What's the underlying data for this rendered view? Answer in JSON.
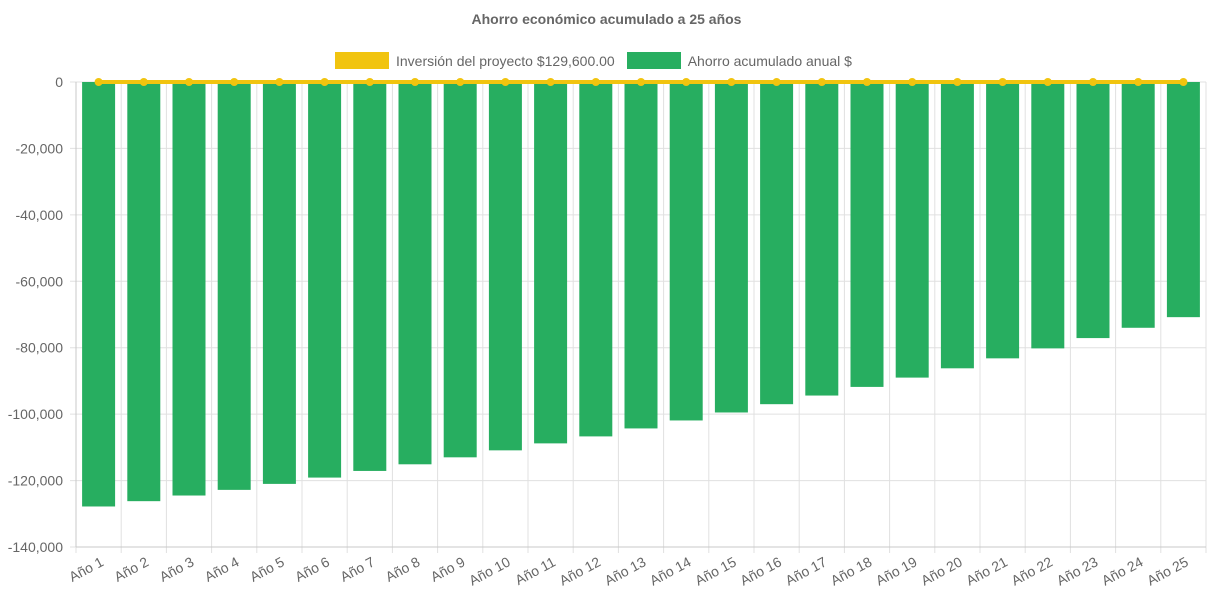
{
  "chart_data": {
    "type": "bar",
    "title": "Ahorro económico acumulado a 25 años",
    "categories": [
      "Año 1",
      "Año 2",
      "Año 3",
      "Año 4",
      "Año 5",
      "Año 6",
      "Año 7",
      "Año 8",
      "Año 9",
      "Año 10",
      "Año 11",
      "Año 12",
      "Año 13",
      "Año 14",
      "Año 15",
      "Año 16",
      "Año 17",
      "Año 18",
      "Año 19",
      "Año 20",
      "Año 21",
      "Año 22",
      "Año 23",
      "Año 24",
      "Año 25"
    ],
    "series": [
      {
        "name": "Inversión del proyecto $129,600.00",
        "type": "line",
        "color": "#f1c40f",
        "values": [
          0,
          0,
          0,
          0,
          0,
          0,
          0,
          0,
          0,
          0,
          0,
          0,
          0,
          0,
          0,
          0,
          0,
          0,
          0,
          0,
          0,
          0,
          0,
          0,
          0
        ]
      },
      {
        "name": "Ahorro acumulado anual $",
        "type": "bar",
        "color": "#27ae60",
        "values": [
          -127800,
          -126200,
          -124500,
          -122800,
          -121000,
          -119100,
          -117100,
          -115100,
          -113000,
          -110900,
          -108800,
          -106700,
          -104300,
          -101900,
          -99500,
          -97000,
          -94400,
          -91800,
          -89000,
          -86200,
          -83200,
          -80200,
          -77100,
          -74000,
          -70800
        ]
      }
    ],
    "yticks": [
      "0",
      "-20,000",
      "-40,000",
      "-60,000",
      "-80,000",
      "-100,000",
      "-120,000",
      "-140,000"
    ],
    "ylim": [
      -140000,
      0
    ],
    "grid": true,
    "legend_position": "top"
  }
}
